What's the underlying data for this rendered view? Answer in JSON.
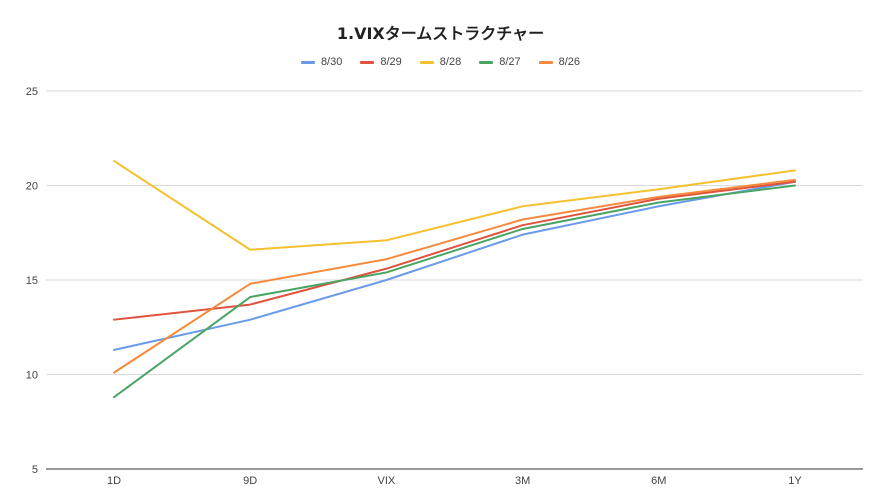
{
  "chart_data": {
    "type": "line",
    "title": "1.VIXタームストラクチャー",
    "categories": [
      "1D",
      "9D",
      "VIX",
      "3M",
      "6M",
      "1Y"
    ],
    "ylim": [
      5,
      25
    ],
    "yticks": [
      5,
      10,
      15,
      20,
      25
    ],
    "grid": true,
    "legend_position": "top",
    "series": [
      {
        "name": "8/30",
        "color": "#6a9be8",
        "values": [
          11.3,
          12.9,
          15.0,
          17.4,
          18.9,
          20.2
        ]
      },
      {
        "name": "8/29",
        "color": "#e0533e",
        "values": [
          12.9,
          13.7,
          15.6,
          17.9,
          19.3,
          20.2
        ]
      },
      {
        "name": "8/28",
        "color": "#f5c12f",
        "values": [
          21.3,
          16.6,
          17.1,
          18.9,
          19.8,
          20.8
        ]
      },
      {
        "name": "8/27",
        "color": "#4aa564",
        "values": [
          8.8,
          14.1,
          15.4,
          17.7,
          19.1,
          20.0
        ]
      },
      {
        "name": "8/26",
        "color": "#f58a3c",
        "values": [
          10.1,
          14.8,
          16.1,
          18.2,
          19.4,
          20.3
        ]
      }
    ]
  }
}
